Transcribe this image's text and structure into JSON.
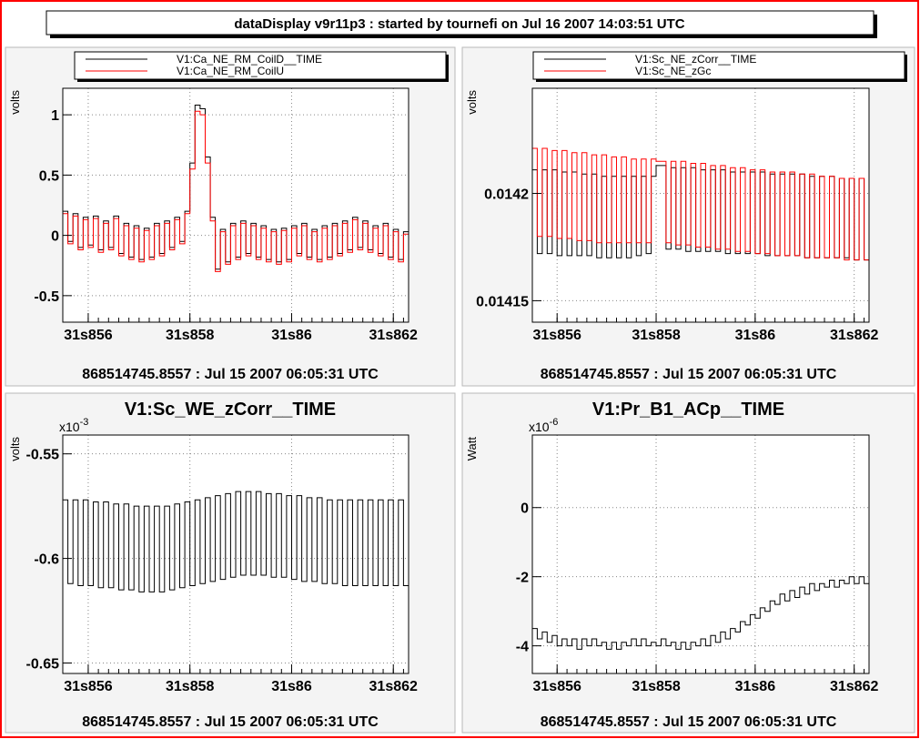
{
  "title": "dataDisplay v9r11p3 : started by tournefi on Jul 16 2007 14:03:51 UTC",
  "colors": {
    "border": "#ff0000",
    "pad_bg": "#f4f4f4",
    "plot_bg": "#ffffff",
    "series_black": "#000000",
    "series_red": "#ff0000"
  },
  "chart_data": [
    {
      "type": "line",
      "title": "",
      "ylabel": "volts",
      "xlabel": "868514745.8557 : Jul 15 2007 06:05:31 UTC",
      "legend": {
        "placement": "top"
      },
      "grid": true,
      "xlim": [
        31.8555,
        31.8623
      ],
      "ylim": [
        -0.72,
        1.22
      ],
      "x_ticks": [
        {
          "v": 31.856,
          "label": "31s856"
        },
        {
          "v": 31.858,
          "label": "31s858"
        },
        {
          "v": 31.86,
          "label": "31s86"
        },
        {
          "v": 31.862,
          "label": "31s862"
        }
      ],
      "y_ticks": [
        {
          "v": 1,
          "label": "1"
        },
        {
          "v": 0.5,
          "label": "0.5"
        },
        {
          "v": 0,
          "label": "0"
        },
        {
          "v": -0.5,
          "label": "-0.5"
        }
      ],
      "exponent_label": "",
      "series": [
        {
          "name": "V1:Ca_NE_RM_CoilD__TIME",
          "color": "#000000",
          "x0": 31.8555,
          "dx": 0.0001,
          "values": [
            0.2,
            -0.05,
            0.18,
            -0.1,
            0.15,
            -0.08,
            0.16,
            -0.12,
            0.12,
            -0.1,
            0.16,
            -0.15,
            0.1,
            -0.18,
            0.08,
            -0.2,
            0.06,
            -0.18,
            0.1,
            -0.15,
            0.12,
            -0.1,
            0.15,
            -0.05,
            0.2,
            0.6,
            1.08,
            1.05,
            0.65,
            0.15,
            -0.28,
            0.05,
            -0.22,
            0.1,
            -0.18,
            0.12,
            -0.15,
            0.1,
            -0.18,
            0.08,
            -0.2,
            0.05,
            -0.22,
            0.06,
            -0.2,
            0.08,
            -0.15,
            0.1,
            -0.18,
            0.05,
            -0.2,
            0.08,
            -0.18,
            0.1,
            -0.15,
            0.12,
            -0.12,
            0.15,
            -0.1,
            0.12,
            -0.12,
            0.08,
            -0.15,
            0.1,
            -0.18,
            0.05,
            -0.2,
            0.03,
            -0.15
          ]
        },
        {
          "name": "V1:Ca_NE_RM_CoilU",
          "color": "#ff0000",
          "x0": 31.8555,
          "dx": 0.0001,
          "values": [
            0.18,
            -0.07,
            0.16,
            -0.12,
            0.13,
            -0.1,
            0.14,
            -0.14,
            0.1,
            -0.12,
            0.14,
            -0.17,
            0.08,
            -0.2,
            0.06,
            -0.22,
            0.04,
            -0.2,
            0.08,
            -0.17,
            0.1,
            -0.12,
            0.13,
            -0.07,
            0.18,
            0.55,
            1.03,
            1.0,
            0.6,
            0.12,
            -0.3,
            0.03,
            -0.24,
            0.08,
            -0.2,
            0.1,
            -0.17,
            0.08,
            -0.2,
            0.06,
            -0.22,
            0.03,
            -0.24,
            0.04,
            -0.22,
            0.06,
            -0.17,
            0.08,
            -0.2,
            0.03,
            -0.22,
            0.06,
            -0.2,
            0.08,
            -0.17,
            0.1,
            -0.14,
            0.13,
            -0.12,
            0.1,
            -0.14,
            0.06,
            -0.17,
            0.08,
            -0.2,
            0.03,
            -0.22,
            0.01,
            -0.17
          ]
        }
      ]
    },
    {
      "type": "line",
      "title": "",
      "ylabel": "volts",
      "xlabel": "868514745.8557 : Jul 15 2007 06:05:31 UTC",
      "legend": {
        "placement": "top"
      },
      "grid": true,
      "xlim": [
        31.8555,
        31.8623
      ],
      "ylim": [
        0.01414,
        0.014249
      ],
      "x_ticks": [
        {
          "v": 31.856,
          "label": "31s856"
        },
        {
          "v": 31.858,
          "label": "31s858"
        },
        {
          "v": 31.86,
          "label": "31s86"
        },
        {
          "v": 31.862,
          "label": "31s862"
        }
      ],
      "y_ticks": [
        {
          "v": 0.0142,
          "label": "0.0142"
        },
        {
          "v": 0.01415,
          "label": "0.01415"
        }
      ],
      "exponent_label": "",
      "series": [
        {
          "name": "V1:Sc_NE_zCorr__TIME",
          "color": "#000000",
          "x0": 31.8555,
          "dx": 0.0001,
          "values": [
            0.014211,
            0.014172,
            0.014211,
            0.014172,
            0.014211,
            0.014171,
            0.01421,
            0.014171,
            0.01421,
            0.014171,
            0.014209,
            0.014171,
            0.014209,
            0.01417,
            0.014208,
            0.01417,
            0.014208,
            0.01417,
            0.014208,
            0.01417,
            0.014208,
            0.014171,
            0.014208,
            0.014172,
            0.014208,
            0.014213,
            0.014213,
            0.014174,
            0.014212,
            0.014174,
            0.014212,
            0.014173,
            0.014212,
            0.014173,
            0.014211,
            0.014173,
            0.014211,
            0.014173,
            0.014211,
            0.014172,
            0.01421,
            0.014172,
            0.01421,
            0.014172,
            0.01421,
            0.014172,
            0.01421,
            0.014171,
            0.014209,
            0.014171,
            0.014209,
            0.014171,
            0.014209,
            0.014171,
            0.014209,
            0.01417,
            0.014208,
            0.01417,
            0.014208,
            0.01417,
            0.014208,
            0.01417,
            0.014207,
            0.01417,
            0.014207,
            0.014169,
            0.014207,
            0.014169
          ]
        },
        {
          "name": "V1:Sc_NE_zGc",
          "color": "#ff0000",
          "x0": 31.8555,
          "dx": 0.0001,
          "values": [
            0.014221,
            0.01418,
            0.014221,
            0.01418,
            0.01422,
            0.014179,
            0.01422,
            0.014179,
            0.014219,
            0.014178,
            0.014219,
            0.014178,
            0.014218,
            0.014177,
            0.014218,
            0.014177,
            0.014217,
            0.014177,
            0.014217,
            0.014177,
            0.014216,
            0.014177,
            0.014216,
            0.014177,
            0.014216,
            0.014215,
            0.014215,
            0.014177,
            0.014215,
            0.014176,
            0.014215,
            0.014176,
            0.014214,
            0.014175,
            0.014214,
            0.014175,
            0.014213,
            0.014174,
            0.014213,
            0.014174,
            0.014212,
            0.014173,
            0.014212,
            0.014173,
            0.014211,
            0.014172,
            0.014211,
            0.014172,
            0.01421,
            0.014171,
            0.01421,
            0.014171,
            0.01421,
            0.014171,
            0.014209,
            0.01417,
            0.014209,
            0.01417,
            0.014208,
            0.01417,
            0.014208,
            0.01417,
            0.014207,
            0.014169,
            0.014207,
            0.014169,
            0.014207,
            0.014169
          ]
        }
      ]
    },
    {
      "type": "line",
      "title": "V1:Sc_WE_zCorr__TIME",
      "ylabel": "volts",
      "xlabel": "868514745.8557 : Jul 15 2007 06:05:31 UTC",
      "legend": null,
      "grid": true,
      "xlim": [
        31.8555,
        31.8623
      ],
      "ylim": [
        -0.000655,
        -0.000541
      ],
      "x_ticks": [
        {
          "v": 31.856,
          "label": "31s856"
        },
        {
          "v": 31.858,
          "label": "31s858"
        },
        {
          "v": 31.86,
          "label": "31s86"
        },
        {
          "v": 31.862,
          "label": "31s862"
        }
      ],
      "y_ticks": [
        {
          "v": -0.00055,
          "label": "-0.55"
        },
        {
          "v": -0.0006,
          "label": "-0.6"
        },
        {
          "v": -0.00065,
          "label": "-0.65"
        }
      ],
      "exponent_label": "x10",
      "exponent_power": "-3",
      "series": [
        {
          "name": "V1:Sc_WE_zCorr__TIME",
          "color": "#000000",
          "x0": 31.8555,
          "dx": 0.0001,
          "values": [
            -0.000572,
            -0.000612,
            -0.000572,
            -0.000613,
            -0.000572,
            -0.000613,
            -0.000573,
            -0.000614,
            -0.000573,
            -0.000614,
            -0.000574,
            -0.000615,
            -0.000574,
            -0.000615,
            -0.000575,
            -0.000616,
            -0.000575,
            -0.000616,
            -0.000575,
            -0.000616,
            -0.000575,
            -0.000615,
            -0.000574,
            -0.000614,
            -0.000573,
            -0.000613,
            -0.000572,
            -0.000612,
            -0.000571,
            -0.000611,
            -0.00057,
            -0.00061,
            -0.000569,
            -0.000609,
            -0.000568,
            -0.000608,
            -0.000568,
            -0.000608,
            -0.000568,
            -0.000608,
            -0.000569,
            -0.000609,
            -0.000569,
            -0.000609,
            -0.00057,
            -0.00061,
            -0.00057,
            -0.000611,
            -0.000571,
            -0.000611,
            -0.000571,
            -0.000612,
            -0.000572,
            -0.000612,
            -0.000572,
            -0.000613,
            -0.000572,
            -0.000613,
            -0.000572,
            -0.000613,
            -0.000572,
            -0.000613,
            -0.000572,
            -0.000613,
            -0.000572,
            -0.000613,
            -0.000572,
            -0.000613
          ]
        }
      ]
    },
    {
      "type": "line",
      "title": "V1:Pr_B1_ACp__TIME",
      "ylabel": "Watt",
      "xlabel": "868514745.8557 : Jul 15 2007 06:05:31 UTC",
      "legend": null,
      "grid": true,
      "xlim": [
        31.8555,
        31.8623
      ],
      "ylim": [
        -4.8e-06,
        2.1e-06
      ],
      "x_ticks": [
        {
          "v": 31.856,
          "label": "31s856"
        },
        {
          "v": 31.858,
          "label": "31s858"
        },
        {
          "v": 31.86,
          "label": "31s86"
        },
        {
          "v": 31.862,
          "label": "31s862"
        }
      ],
      "y_ticks": [
        {
          "v": 0,
          "label": "0"
        },
        {
          "v": -2e-06,
          "label": "-2"
        },
        {
          "v": -4e-06,
          "label": "-4"
        }
      ],
      "exponent_label": "x10",
      "exponent_power": "-6",
      "series": [
        {
          "name": "V1:Pr_B1_ACp__TIME",
          "color": "#000000",
          "x0": 31.8555,
          "dx": 0.0001,
          "values": [
            -3.5e-06,
            -3.8e-06,
            -3.6e-06,
            -3.9e-06,
            -3.7e-06,
            -4e-06,
            -3.8e-06,
            -4e-06,
            -3.8e-06,
            -4.1e-06,
            -3.8e-06,
            -4e-06,
            -3.8e-06,
            -4e-06,
            -3.9e-06,
            -4.1e-06,
            -3.9e-06,
            -4.1e-06,
            -3.9e-06,
            -4e-06,
            -3.8e-06,
            -4e-06,
            -3.8e-06,
            -4e-06,
            -3.9e-06,
            -4e-06,
            -3.8e-06,
            -4e-06,
            -3.9e-06,
            -4.1e-06,
            -3.9e-06,
            -4.1e-06,
            -3.9e-06,
            -4e-06,
            -3.8e-06,
            -4e-06,
            -3.7e-06,
            -3.9e-06,
            -3.6e-06,
            -3.8e-06,
            -3.5e-06,
            -3.6e-06,
            -3.3e-06,
            -3.4e-06,
            -3.1e-06,
            -3.2e-06,
            -2.9e-06,
            -3e-06,
            -2.7e-06,
            -2.8e-06,
            -2.5e-06,
            -2.7e-06,
            -2.4e-06,
            -2.6e-06,
            -2.3e-06,
            -2.5e-06,
            -2.2e-06,
            -2.4e-06,
            -2.2e-06,
            -2.3e-06,
            -2.1e-06,
            -2.3e-06,
            -2.1e-06,
            -2.2e-06,
            -2e-06,
            -2.2e-06,
            -2e-06,
            -2.2e-06
          ]
        }
      ]
    }
  ]
}
